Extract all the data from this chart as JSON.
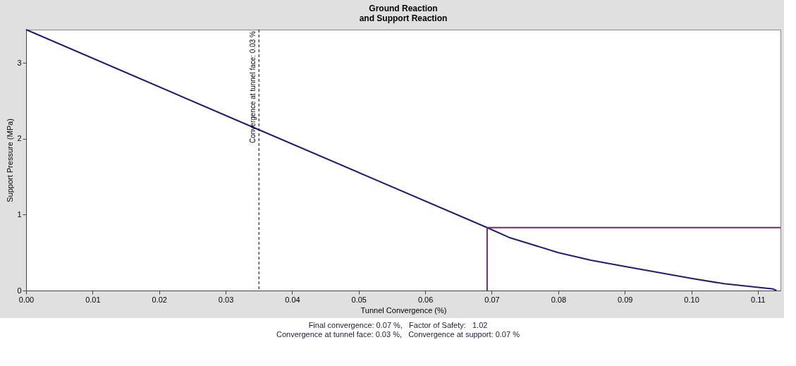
{
  "chart_data": {
    "type": "line",
    "title": "Ground Reaction\nand Support Reaction",
    "xlabel": "Tunnel Convergence (%)",
    "ylabel": "Support Pressure (MPa)",
    "xlim": [
      0,
      0.1134
    ],
    "ylim": [
      0,
      3.44
    ],
    "xticks": [
      {
        "value": 0,
        "label": "0.00"
      },
      0.01,
      0.02,
      0.03,
      0.04,
      0.05,
      0.06,
      0.07,
      0.08,
      0.09,
      {
        "value": 0.1,
        "label": "0.10"
      },
      0.11
    ],
    "yticks": [
      0,
      1,
      2,
      3
    ],
    "grid": false,
    "line_style": "solid",
    "series": [
      {
        "color": "#1f1f6e",
        "x": [
          0,
          0.035,
          0.0693,
          0.0726,
          0.08,
          0.0849,
          0.0898,
          0.1,
          0.1049,
          0.1123,
          0.1128
        ],
        "values": [
          3.44,
          2.12,
          0.83,
          0.7,
          0.5,
          0.4,
          0.32,
          0.16,
          0.09,
          0.02,
          0
        ]
      },
      {
        "color": "#6b2c6b",
        "x": [
          0.0693,
          0.0693,
          0.1134
        ],
        "values": [
          0,
          0.83,
          0.83
        ]
      }
    ],
    "ref_lines": [
      {
        "axis": "x",
        "value": 0.035,
        "label": "Convergence at tunnel face: 0.03 %",
        "color": "#000000",
        "line_style": "dashed"
      }
    ],
    "annotations": [
      "Final convergence: 0.07 %,   Factor of Safety:   1.02",
      "Convergence at tunnel face: 0.03 %,   Convergence at support: 0.07 %"
    ]
  }
}
